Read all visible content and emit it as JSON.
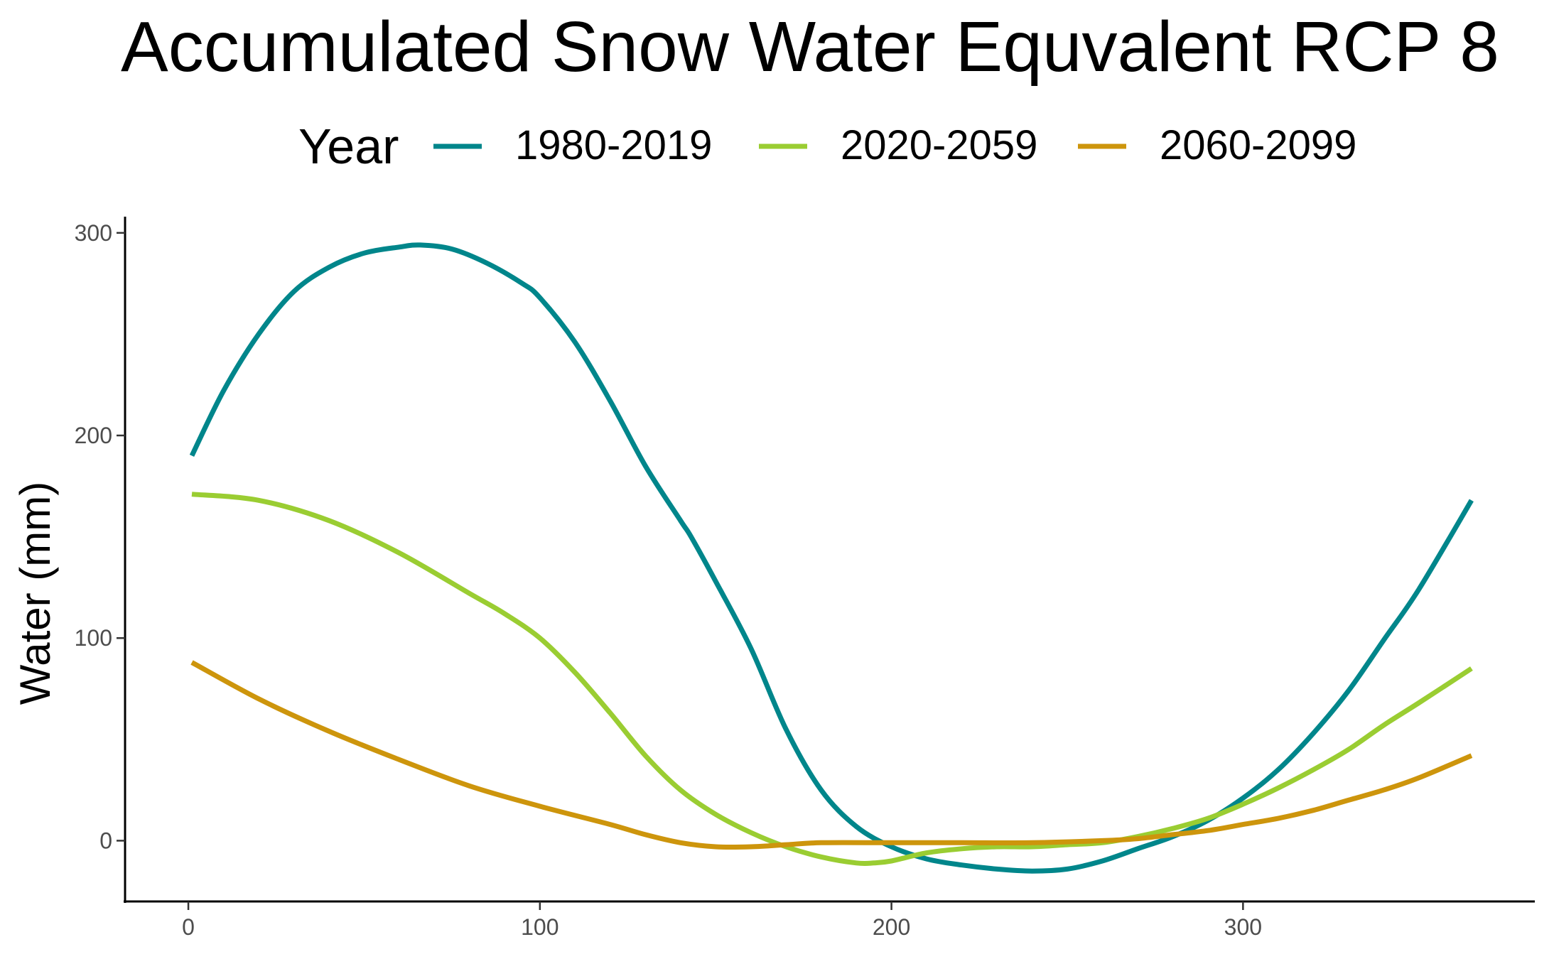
{
  "chart_data": {
    "type": "line",
    "title": "Accumulated Snow Water Equvalent RCP 8",
    "xlabel": "",
    "ylabel": "Water (mm)",
    "legend": {
      "title": "Year",
      "placement": "top"
    },
    "xlim": [
      -18,
      383
    ],
    "ylim": [
      -30,
      308
    ],
    "x_ticks": [
      0,
      100,
      200,
      300
    ],
    "y_ticks": [
      0,
      100,
      200,
      300
    ],
    "grid": false,
    "series": [
      {
        "name": "1980-2019",
        "color": "#00868b",
        "x": [
          1,
          10,
          20,
          30,
          40,
          50,
          60,
          66,
          75,
          85,
          95,
          100,
          110,
          120,
          130,
          140,
          143,
          150,
          160,
          170,
          180,
          190,
          200,
          210,
          220,
          230,
          240,
          250,
          260,
          270,
          280,
          290,
          300,
          310,
          320,
          330,
          340,
          350,
          365
        ],
        "values": [
          190,
          222,
          250,
          271,
          283,
          290,
          293,
          294,
          292,
          285,
          275,
          268,
          246,
          217,
          185,
          158,
          150,
          128,
          95,
          55,
          25,
          7,
          -3,
          -9,
          -12,
          -14,
          -15,
          -14,
          -10,
          -4,
          2,
          10,
          21,
          35,
          53,
          74,
          99,
          124,
          168
        ]
      },
      {
        "name": "2020-2059",
        "color": "#9acd32",
        "x": [
          1,
          20,
          40,
          60,
          80,
          90,
          100,
          110,
          120,
          130,
          140,
          150,
          160,
          170,
          180,
          190,
          195,
          200,
          210,
          220,
          230,
          240,
          250,
          260,
          270,
          280,
          290,
          300,
          310,
          320,
          330,
          340,
          350,
          365
        ],
        "values": [
          171,
          168,
          158,
          142,
          122,
          112,
          100,
          83,
          63,
          42,
          25,
          13,
          4,
          -3,
          -8,
          -11,
          -11,
          -10,
          -6,
          -4,
          -3,
          -3,
          -2,
          -1,
          2,
          6,
          11,
          18,
          26,
          35,
          45,
          57,
          68,
          85
        ]
      },
      {
        "name": "2060-2099",
        "color": "#cd950c",
        "x": [
          1,
          20,
          40,
          60,
          80,
          100,
          120,
          130,
          140,
          150,
          160,
          170,
          180,
          200,
          220,
          240,
          260,
          270,
          280,
          290,
          300,
          310,
          320,
          330,
          340,
          350,
          365
        ],
        "values": [
          88,
          70,
          54,
          40,
          27,
          17,
          8,
          3,
          -1,
          -3,
          -3,
          -2,
          -1,
          -1,
          -1,
          -1,
          0,
          1,
          3,
          5,
          8,
          11,
          15,
          20,
          25,
          31,
          42
        ]
      }
    ]
  }
}
